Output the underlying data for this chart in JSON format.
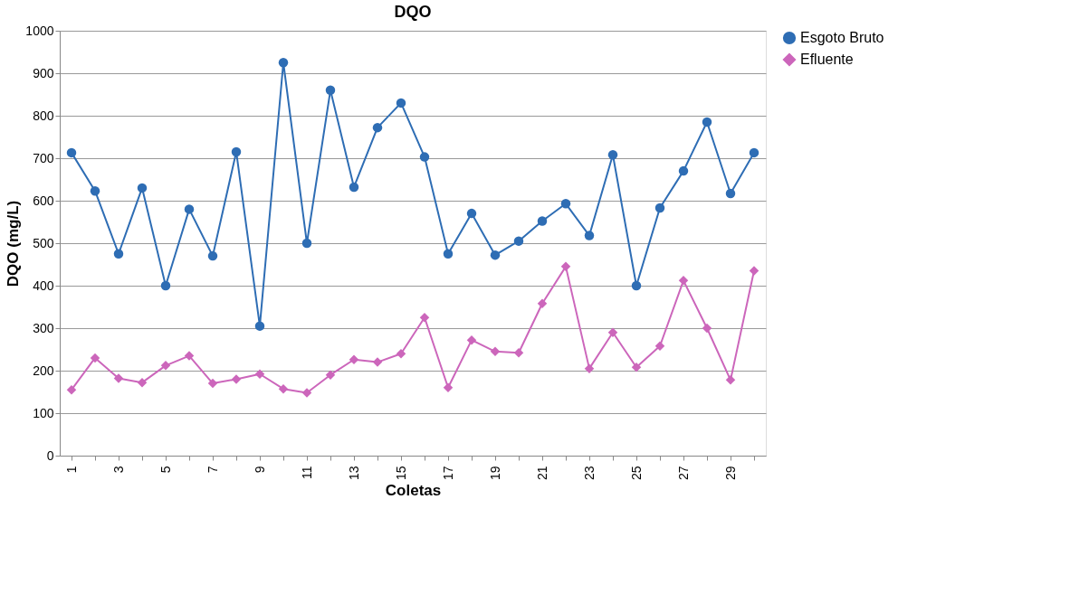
{
  "chart_data": {
    "type": "line",
    "title": "DQO",
    "xlabel": "Coletas",
    "ylabel": "DQO (mg/L)",
    "categories": [
      "1",
      null,
      "3",
      null,
      "5",
      null,
      "7",
      null,
      "9",
      null,
      "11",
      null,
      "13",
      null,
      "15",
      null,
      "17",
      null,
      "19",
      null,
      "21",
      null,
      "23",
      null,
      "25",
      null,
      "27",
      null,
      "29",
      null
    ],
    "series": [
      {
        "name": "Esgoto Bruto",
        "color": "#2e6db4",
        "marker": "circle",
        "values": [
          713,
          623,
          475,
          630,
          400,
          580,
          470,
          715,
          305,
          925,
          500,
          860,
          632,
          772,
          830,
          703,
          475,
          570,
          472,
          505,
          552,
          593,
          518,
          708,
          400,
          583,
          670,
          785,
          617,
          713
        ]
      },
      {
        "name": "Efluente",
        "color": "#cc66bb",
        "marker": "diamond",
        "values": [
          155,
          230,
          182,
          172,
          212,
          235,
          170,
          180,
          192,
          157,
          148,
          190,
          226,
          220,
          240,
          325,
          160,
          272,
          245,
          242,
          358,
          445,
          205,
          290,
          208,
          258,
          412,
          300,
          178,
          435
        ]
      }
    ],
    "ylim": [
      0,
      1000
    ],
    "yticks": [
      0,
      100,
      200,
      300,
      400,
      500,
      600,
      700,
      800,
      900,
      1000
    ],
    "grid": "y",
    "legend": "right",
    "line_style": "solid"
  }
}
